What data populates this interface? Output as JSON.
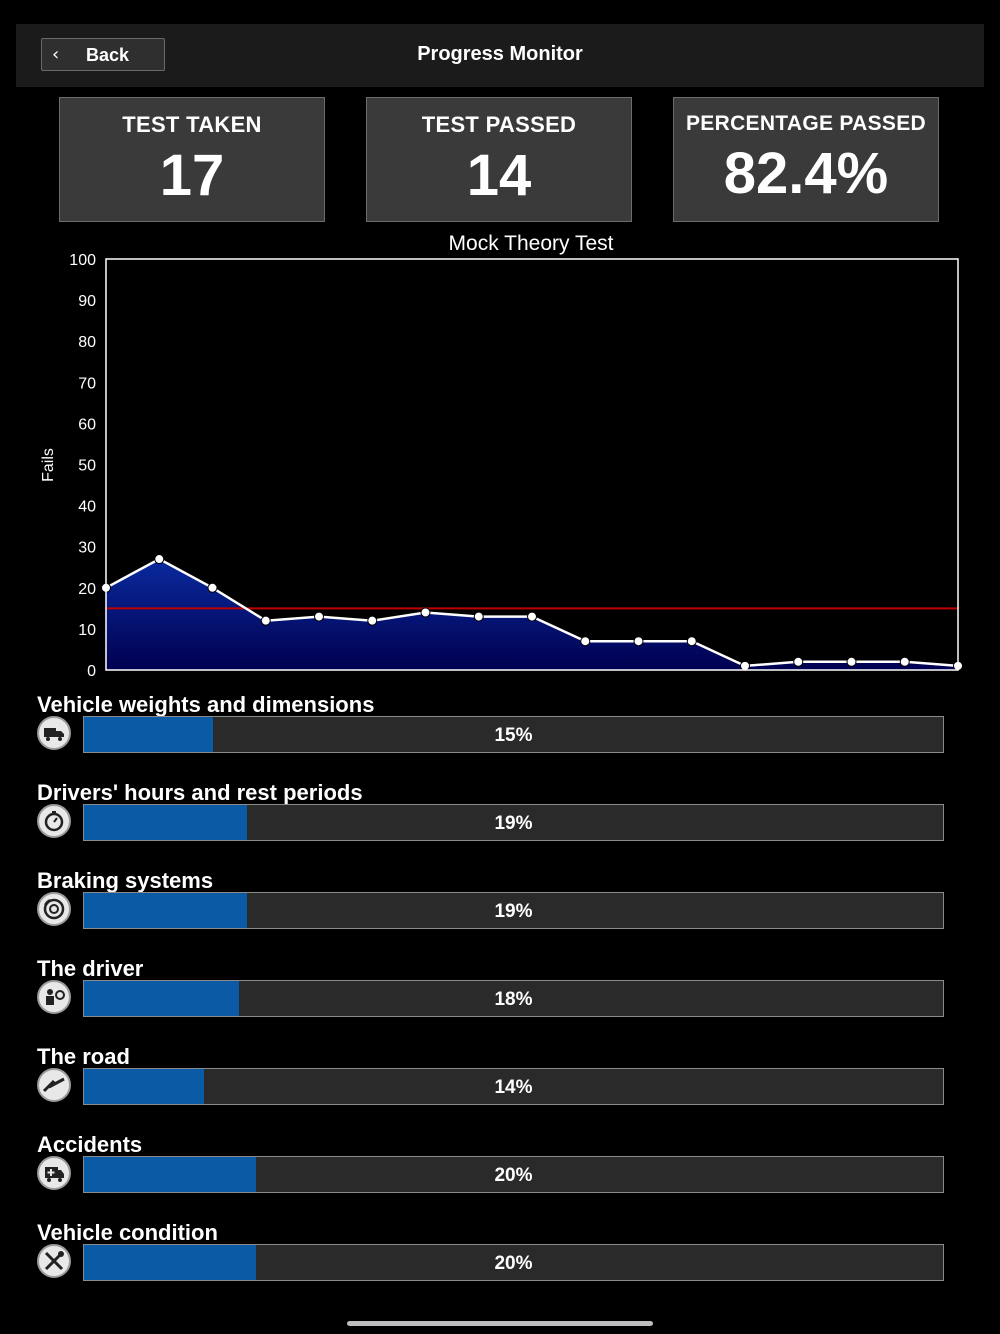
{
  "nav": {
    "back_label": "Back",
    "title": "Progress Monitor"
  },
  "stats": [
    {
      "label": "TEST TAKEN",
      "value": "17"
    },
    {
      "label": "TEST PASSED",
      "value": "14"
    },
    {
      "label": "PERCENTAGE PASSED",
      "value": "82.4%"
    }
  ],
  "chart_data": {
    "type": "area",
    "title": "Mock Theory Test",
    "xlabel": "",
    "ylabel": "Fails",
    "ylim": [
      0,
      100
    ],
    "yticks": [
      0,
      10,
      20,
      30,
      40,
      50,
      60,
      70,
      80,
      90,
      100
    ],
    "x": [
      1,
      2,
      3,
      4,
      5,
      6,
      7,
      8,
      9,
      10,
      11,
      12,
      13,
      14,
      15,
      16,
      17
    ],
    "series": [
      {
        "values": [
          20,
          27,
          20,
          12,
          13,
          12,
          14,
          13,
          13,
          7,
          7,
          7,
          1,
          2,
          2,
          2,
          1
        ]
      }
    ],
    "threshold": 15,
    "grid": false,
    "colors": {
      "line": "#ffffff",
      "fill_top": "#0a2a9e",
      "fill_bottom": "#000050",
      "threshold": "#c00000"
    }
  },
  "categories": [
    {
      "title": "Vehicle weights and dimensions",
      "percent": 15,
      "label": "15%",
      "icon": "truck-icon"
    },
    {
      "title": "Drivers' hours and rest periods",
      "percent": 19,
      "label": "19%",
      "icon": "stopwatch-icon"
    },
    {
      "title": "Braking systems",
      "percent": 19,
      "label": "19%",
      "icon": "brake-disc-icon"
    },
    {
      "title": "The driver",
      "percent": 18,
      "label": "18%",
      "icon": "driver-icon"
    },
    {
      "title": "The road",
      "percent": 14,
      "label": "14%",
      "icon": "road-icon"
    },
    {
      "title": "Accidents",
      "percent": 20,
      "label": "20%",
      "icon": "ambulance-icon"
    },
    {
      "title": "Vehicle condition",
      "percent": 20,
      "label": "20%",
      "icon": "tools-icon"
    }
  ],
  "colors": {
    "bar_fill": "#0b5aa5",
    "bar_track": "#2a2a2a"
  }
}
